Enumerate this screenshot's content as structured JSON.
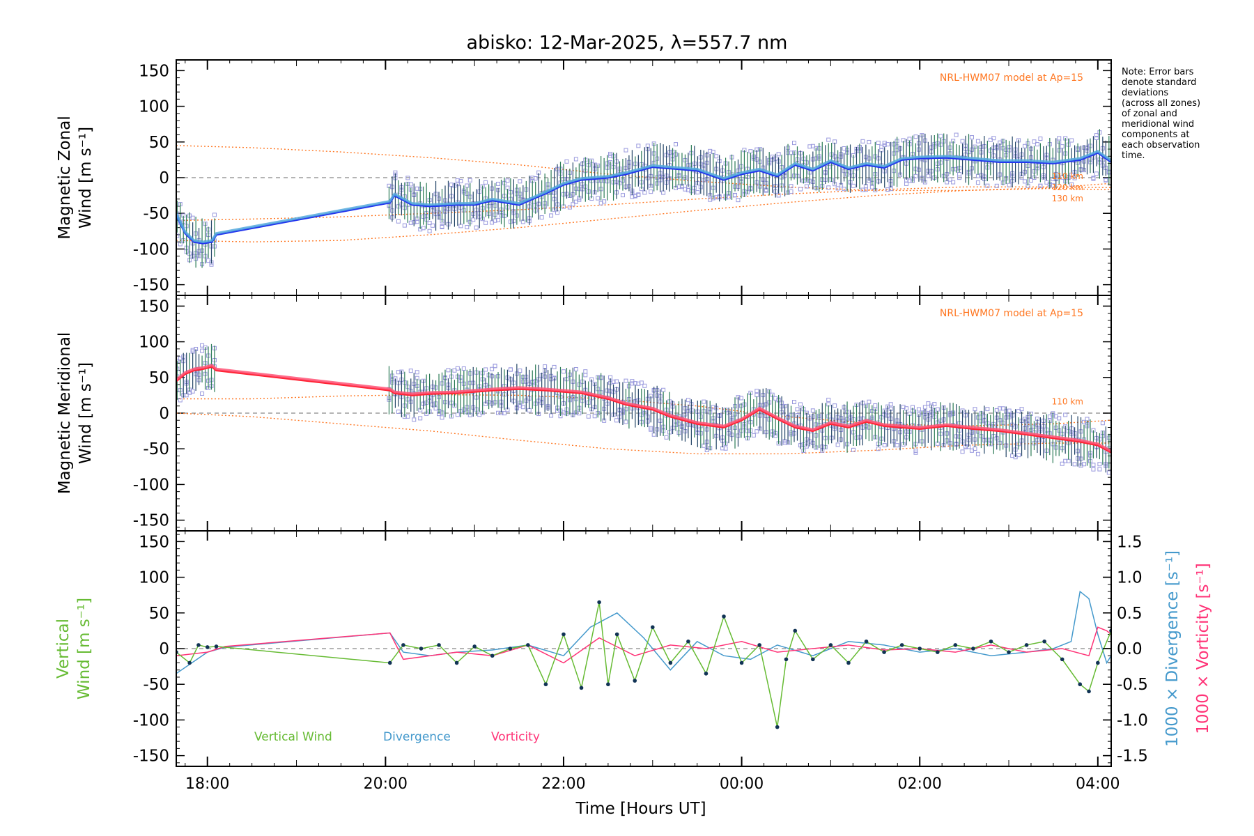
{
  "figure": {
    "title": "abisko: 12-Mar-2025, λ=557.7 nm",
    "xlabel": "Time [Hours UT]",
    "note_lines": [
      "Note: Error bars",
      "denote standard",
      "deviations",
      "(across all zones)",
      "of zonal and",
      "meridional wind",
      "components at",
      "each observation",
      "time."
    ],
    "colors": {
      "zonal": "#2233ee",
      "zonal_smooth": "#55aadd",
      "meridional": "#ff2233",
      "meridional_smooth": "#ff5577",
      "model": "#ff7722",
      "scatter": "#9999dd",
      "vertical": "#66bb33",
      "divergence": "#4499cc",
      "vorticity": "#ff3377",
      "axis": "#000000"
    }
  },
  "chart_data": [
    {
      "type": "line",
      "panel": "zonal",
      "ylabel_lines": [
        "Magnetic Zonal",
        "Wind [m s⁻¹]"
      ],
      "ylim": [
        -165,
        165
      ],
      "yticks": [
        -150,
        -100,
        -50,
        0,
        50,
        100,
        150
      ],
      "xlim": [
        17.65,
        28.15
      ],
      "xticks": [
        {
          "v": 18,
          "label": "18:00"
        },
        {
          "v": 20,
          "label": "20:00"
        },
        {
          "v": 22,
          "label": "22:00"
        },
        {
          "v": 24,
          "label": "00:00"
        },
        {
          "v": 26,
          "label": "02:00"
        },
        {
          "v": 28,
          "label": "04:00"
        }
      ],
      "model_label": "NRL-HWM07 model at Ap=15",
      "model_alt_labels": [
        "110 km",
        "120 km",
        "130 km"
      ],
      "series": [
        {
          "name": "Zonal wind",
          "x": [
            17.65,
            17.75,
            17.85,
            17.95,
            18.05,
            18.1,
            20.05,
            20.1,
            20.3,
            20.5,
            20.8,
            21.0,
            21.2,
            21.5,
            21.8,
            22.0,
            22.2,
            22.5,
            22.7,
            23.0,
            23.3,
            23.5,
            23.8,
            24.0,
            24.2,
            24.4,
            24.6,
            24.8,
            25.0,
            25.2,
            25.4,
            25.6,
            25.8,
            26.0,
            26.3,
            26.6,
            26.9,
            27.2,
            27.5,
            27.8,
            28.0,
            28.15
          ],
          "y": [
            -52,
            -78,
            -90,
            -92,
            -90,
            -80,
            -35,
            -25,
            -38,
            -40,
            -38,
            -38,
            -32,
            -38,
            -22,
            -10,
            -3,
            0,
            5,
            15,
            12,
            10,
            -3,
            5,
            10,
            2,
            18,
            10,
            22,
            12,
            18,
            14,
            25,
            27,
            28,
            25,
            22,
            22,
            20,
            25,
            35,
            22
          ]
        },
        {
          "name": "NRL-HWM07 110 km",
          "x": [
            17.65,
            18.5,
            19.5,
            20.5,
            21.5,
            22.5,
            23.5,
            24.5,
            25.5,
            26.5,
            27.5,
            28.15
          ],
          "y": [
            45,
            42,
            36,
            28,
            18,
            5,
            -5,
            -13,
            -18,
            -18,
            -14,
            -8
          ]
        },
        {
          "name": "NRL-HWM07 120 km",
          "x": [
            17.65,
            18.5,
            19.5,
            20.5,
            21.5,
            22.5,
            23.5,
            24.5,
            25.5,
            26.5,
            27.5,
            28.15
          ],
          "y": [
            -60,
            -58,
            -55,
            -50,
            -45,
            -38,
            -30,
            -23,
            -17,
            -13,
            -13,
            -14
          ]
        },
        {
          "name": "NRL-HWM07 130 km",
          "x": [
            17.65,
            18.5,
            19.5,
            20.5,
            21.5,
            22.5,
            23.5,
            24.5,
            25.5,
            26.5,
            27.5,
            28.15
          ],
          "y": [
            -88,
            -90,
            -88,
            -80,
            -70,
            -58,
            -46,
            -35,
            -25,
            -18,
            -15,
            -17
          ]
        }
      ]
    },
    {
      "type": "line",
      "panel": "meridional",
      "ylabel_lines": [
        "Magnetic Meridional",
        "Wind [m s⁻¹]"
      ],
      "ylim": [
        -165,
        165
      ],
      "yticks": [
        -150,
        -100,
        -50,
        0,
        50,
        100,
        150
      ],
      "xlim": [
        17.65,
        28.15
      ],
      "model_label": "NRL-HWM07 model at Ap=15",
      "model_alt_labels": [
        "110 km"
      ],
      "series": [
        {
          "name": "Meridional wind",
          "x": [
            17.65,
            17.75,
            17.85,
            17.95,
            18.05,
            18.1,
            20.05,
            20.1,
            20.3,
            20.5,
            20.8,
            21.0,
            21.2,
            21.5,
            21.8,
            22.0,
            22.2,
            22.5,
            22.7,
            23.0,
            23.2,
            23.5,
            23.8,
            24.0,
            24.2,
            24.4,
            24.6,
            24.8,
            25.0,
            25.2,
            25.4,
            25.6,
            25.8,
            26.0,
            26.3,
            26.6,
            26.9,
            27.2,
            27.5,
            27.8,
            28.0,
            28.15
          ],
          "y": [
            45,
            55,
            60,
            62,
            65,
            60,
            32,
            28,
            25,
            27,
            28,
            30,
            32,
            34,
            32,
            30,
            28,
            20,
            12,
            5,
            -5,
            -15,
            -20,
            -10,
            5,
            -8,
            -20,
            -25,
            -15,
            -20,
            -12,
            -18,
            -20,
            -22,
            -18,
            -22,
            -25,
            -30,
            -35,
            -40,
            -45,
            -55
          ]
        },
        {
          "name": "NRL-HWM07 110 km",
          "x": [
            17.65,
            18.5,
            19.5,
            20.5,
            21.5,
            22.5,
            23.5,
            24.5,
            25.5,
            26.5,
            27.5,
            28.15
          ],
          "y": [
            20,
            20,
            24,
            26,
            25,
            20,
            10,
            -5,
            -15,
            -18,
            -15,
            -10
          ]
        },
        {
          "name": "NRL-HWM07 model low",
          "x": [
            17.65,
            18.5,
            19.5,
            20.5,
            21.5,
            22.5,
            23.5,
            24.5,
            25.5,
            26.5,
            27.5,
            28.15
          ],
          "y": [
            0,
            -5,
            -15,
            -25,
            -38,
            -50,
            -57,
            -57,
            -52,
            -45,
            -42,
            -42
          ]
        }
      ]
    },
    {
      "type": "line",
      "panel": "vertical",
      "ylabel_lines": [
        "Vertical",
        "Wind [m s⁻¹]"
      ],
      "ylim": [
        -165,
        165
      ],
      "yticks": [
        -150,
        -100,
        -50,
        0,
        50,
        100,
        150
      ],
      "y2lim": [
        -1.65,
        1.65
      ],
      "y2ticks": [
        -1.5,
        -1.0,
        -0.5,
        0.0,
        0.5,
        1.0,
        1.5
      ],
      "y2labels": [
        "1000 × Divergence [s⁻¹]",
        "1000 × Vorticity [s⁻¹]"
      ],
      "xlim": [
        17.65,
        28.15
      ],
      "legend": [
        "Vertical Wind",
        "Divergence",
        "Vorticity"
      ],
      "series": [
        {
          "name": "Vertical Wind",
          "x": [
            17.65,
            17.8,
            17.9,
            18.0,
            18.1,
            20.05,
            20.2,
            20.4,
            20.6,
            20.8,
            21.0,
            21.2,
            21.4,
            21.6,
            21.8,
            22.0,
            22.2,
            22.4,
            22.5,
            22.6,
            22.8,
            23.0,
            23.2,
            23.4,
            23.6,
            23.8,
            24.0,
            24.2,
            24.4,
            24.5,
            24.6,
            24.8,
            25.0,
            25.2,
            25.4,
            25.6,
            25.8,
            26.0,
            26.2,
            26.4,
            26.6,
            26.8,
            27.0,
            27.2,
            27.4,
            27.6,
            27.8,
            27.9,
            28.0,
            28.15
          ],
          "y": [
            -5,
            -20,
            5,
            2,
            3,
            -20,
            5,
            0,
            5,
            -20,
            3,
            -10,
            0,
            5,
            -50,
            20,
            -55,
            65,
            -50,
            20,
            -45,
            30,
            -20,
            10,
            -35,
            45,
            -20,
            5,
            -110,
            -15,
            25,
            -15,
            5,
            -20,
            10,
            -5,
            5,
            0,
            -5,
            5,
            0,
            10,
            -5,
            5,
            10,
            -15,
            -50,
            -60,
            -20,
            25
          ]
        },
        {
          "name": "Divergence",
          "axis": "right",
          "x": [
            17.65,
            18.0,
            18.2,
            20.05,
            20.2,
            20.5,
            20.8,
            21.2,
            21.6,
            22.0,
            22.3,
            22.6,
            22.9,
            23.2,
            23.5,
            23.8,
            24.1,
            24.4,
            24.8,
            25.2,
            25.6,
            26.0,
            26.4,
            26.8,
            27.2,
            27.5,
            27.7,
            27.8,
            27.9,
            28.0,
            28.1,
            28.15
          ],
          "y": [
            -0.35,
            -0.05,
            0.02,
            0.22,
            -0.05,
            -0.1,
            -0.05,
            -0.02,
            0.05,
            -0.1,
            0.3,
            0.5,
            0.15,
            -0.3,
            0.1,
            -0.1,
            -0.15,
            0.05,
            -0.1,
            0.1,
            0.05,
            -0.05,
            0.0,
            -0.1,
            -0.05,
            0.0,
            0.1,
            0.8,
            0.7,
            0.2,
            -0.2,
            -0.1
          ]
        },
        {
          "name": "Vorticity",
          "axis": "right",
          "x": [
            17.65,
            18.0,
            18.2,
            20.05,
            20.2,
            20.5,
            20.8,
            21.2,
            21.6,
            22.0,
            22.4,
            22.8,
            23.2,
            23.6,
            24.0,
            24.4,
            24.8,
            25.2,
            25.6,
            26.0,
            26.4,
            26.8,
            27.2,
            27.6,
            27.9,
            28.0,
            28.1,
            28.15
          ],
          "y": [
            -0.1,
            -0.05,
            0.03,
            0.22,
            -0.15,
            -0.1,
            -0.05,
            -0.1,
            0.05,
            -0.2,
            0.15,
            -0.1,
            0.05,
            0.0,
            0.1,
            -0.05,
            0.0,
            0.05,
            -0.02,
            0.0,
            -0.05,
            0.05,
            -0.05,
            0.0,
            -0.1,
            0.3,
            0.25,
            0.2
          ]
        }
      ]
    }
  ]
}
